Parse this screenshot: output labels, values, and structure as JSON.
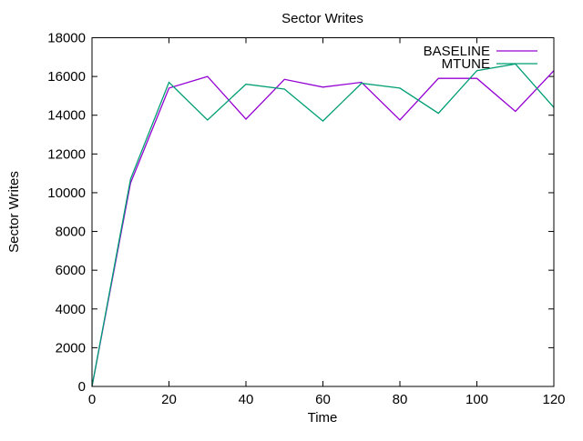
{
  "chart_data": {
    "type": "line",
    "title": "Sector Writes",
    "xlabel": "Time",
    "ylabel": "Sector Writes",
    "xlim": [
      0,
      120
    ],
    "ylim": [
      0,
      18000
    ],
    "xticks": [
      0,
      20,
      40,
      60,
      80,
      100,
      120
    ],
    "yticks": [
      0,
      2000,
      4000,
      6000,
      8000,
      10000,
      12000,
      14000,
      16000,
      18000
    ],
    "x": [
      0,
      10,
      20,
      30,
      40,
      50,
      60,
      70,
      80,
      90,
      100,
      110,
      120
    ],
    "series": [
      {
        "name": "BASELINE",
        "color": "#9400d3",
        "values": [
          0,
          10500,
          15400,
          16000,
          13800,
          15850,
          15450,
          15700,
          13750,
          15900,
          15900,
          14200,
          16300
        ]
      },
      {
        "name": "MTUNE",
        "color": "#009e73",
        "values": [
          0,
          10700,
          15700,
          13750,
          15600,
          15350,
          13700,
          15650,
          15400,
          14100,
          16300,
          16650,
          14400
        ]
      }
    ],
    "legend_position": "top-right",
    "grid": false,
    "background_color": "#ffffff",
    "axis_color": "#000000",
    "text_color": "#000000"
  }
}
